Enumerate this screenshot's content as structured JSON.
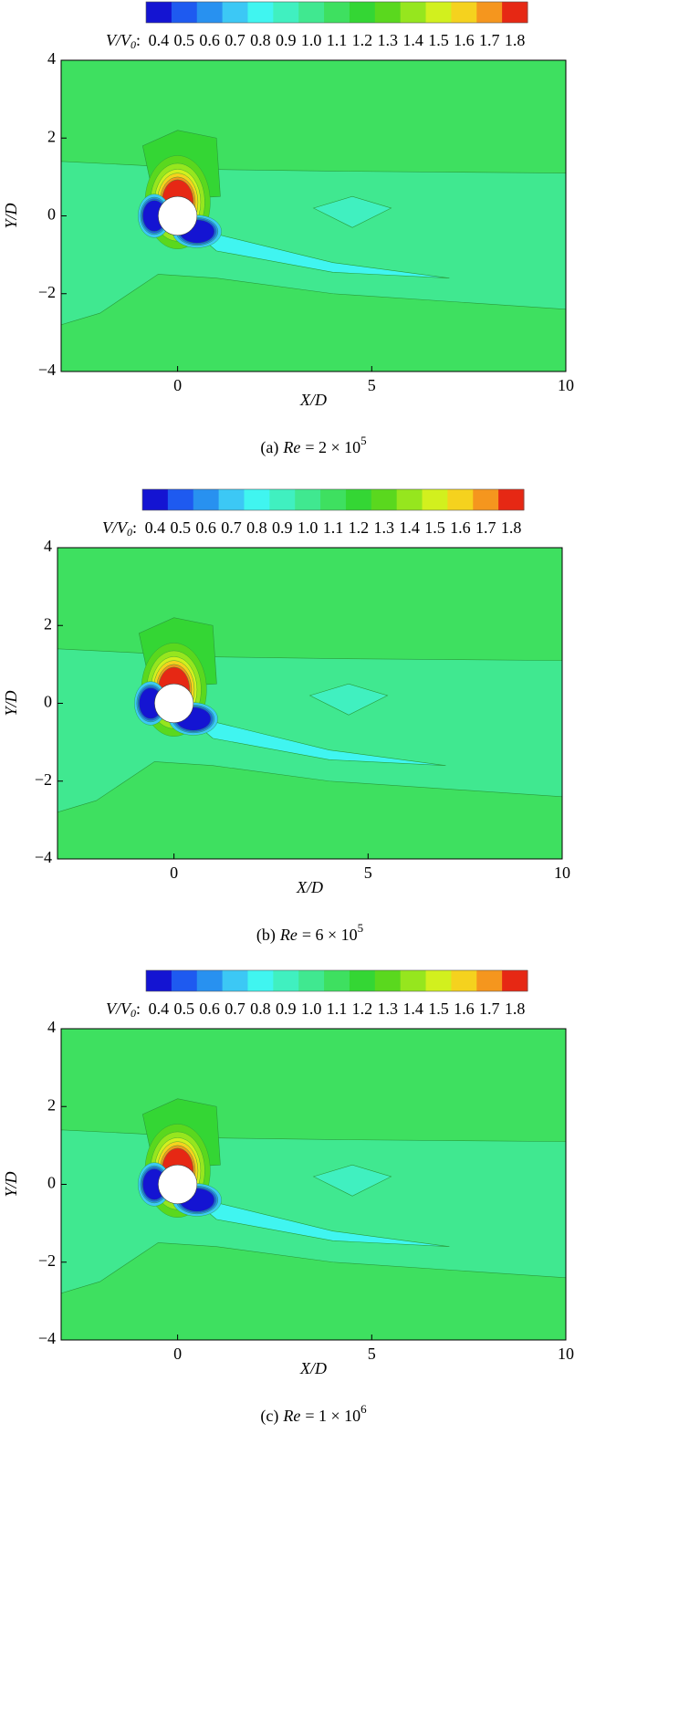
{
  "chart_data": [
    {
      "type": "contour",
      "caption_label": "(a)",
      "caption_var": "Re",
      "caption_value": "= 2 × 10",
      "caption_exp": "5",
      "colorbar_label": "V/V",
      "colorbar_label_sub": "0",
      "colorbar_label_suffix": ":",
      "colorbar_lim": [
        0.35,
        1.85
      ],
      "colorbar_ticks": [
        0.4,
        0.5,
        0.6,
        0.7,
        0.8,
        0.9,
        {
          "value": 1,
          "label": "1.0"
        },
        1.1,
        1.2,
        1.3,
        1.4,
        1.5,
        1.6,
        1.7,
        1.8
      ],
      "colors": [
        "#1414d2",
        "#1e5af0",
        "#2891f0",
        "#3cc8f5",
        "#40f5f0",
        "#40f0c0",
        "#40e890",
        "#3ee060",
        "#34d634",
        "#5ad81e",
        "#96e61e",
        "#d2f01e",
        "#f5d21e",
        "#f5961e",
        "#e62814"
      ],
      "x_label": "X/D",
      "y_label": "Y/D",
      "xlim": [
        -3,
        10
      ],
      "ylim": [
        -4,
        4
      ],
      "xticks": [
        0,
        5,
        10
      ],
      "yticks": [
        {
          "value": -4,
          "label": "−4"
        },
        {
          "value": -2,
          "label": "−2"
        },
        0,
        2,
        4
      ]
    },
    {
      "type": "contour",
      "caption_label": "(b)",
      "caption_var": "Re",
      "caption_value": "= 6 × 10",
      "caption_exp": "5",
      "colorbar_label": "V/V",
      "colorbar_label_sub": "0",
      "colorbar_label_suffix": ":",
      "colorbar_lim": [
        0.35,
        1.85
      ],
      "colorbar_ticks": [
        0.4,
        0.5,
        0.6,
        0.7,
        0.8,
        0.9,
        {
          "value": 1,
          "label": "1.0"
        },
        1.1,
        1.2,
        1.3,
        1.4,
        1.5,
        1.6,
        1.7,
        1.8
      ],
      "colors": [
        "#1414d2",
        "#1e5af0",
        "#2891f0",
        "#3cc8f5",
        "#40f5f0",
        "#40f0c0",
        "#40e890",
        "#3ee060",
        "#34d634",
        "#5ad81e",
        "#96e61e",
        "#d2f01e",
        "#f5d21e",
        "#f5961e",
        "#e62814"
      ],
      "x_label": "X/D",
      "y_label": "Y/D",
      "xlim": [
        -3,
        10
      ],
      "ylim": [
        -4,
        4
      ],
      "xticks": [
        0,
        5,
        10
      ],
      "yticks": [
        {
          "value": -4,
          "label": "−4"
        },
        {
          "value": -2,
          "label": "−2"
        },
        0,
        2,
        4
      ]
    },
    {
      "type": "contour",
      "caption_label": "(c)",
      "caption_var": "Re",
      "caption_value": "= 1 × 10",
      "caption_exp": "6",
      "colorbar_label": "V/V",
      "colorbar_label_sub": "0",
      "colorbar_label_suffix": ":",
      "colorbar_lim": [
        0.35,
        1.85
      ],
      "colorbar_ticks": [
        0.4,
        0.5,
        0.6,
        0.7,
        0.8,
        0.9,
        {
          "value": 1,
          "label": "1.0"
        },
        1.1,
        1.2,
        1.3,
        1.4,
        1.5,
        1.6,
        1.7,
        1.8
      ],
      "colors": [
        "#1414d2",
        "#1e5af0",
        "#2891f0",
        "#3cc8f5",
        "#40f5f0",
        "#40f0c0",
        "#40e890",
        "#3ee060",
        "#34d634",
        "#5ad81e",
        "#96e61e",
        "#d2f01e",
        "#f5d21e",
        "#f5961e",
        "#e62814"
      ],
      "x_label": "X/D",
      "y_label": "Y/D",
      "xlim": [
        -3,
        10
      ],
      "ylim": [
        -4,
        4
      ],
      "xticks": [
        0,
        5,
        10
      ],
      "yticks": [
        {
          "value": -4,
          "label": "−4"
        },
        {
          "value": -2,
          "label": "−2"
        },
        0,
        2,
        4
      ]
    }
  ]
}
